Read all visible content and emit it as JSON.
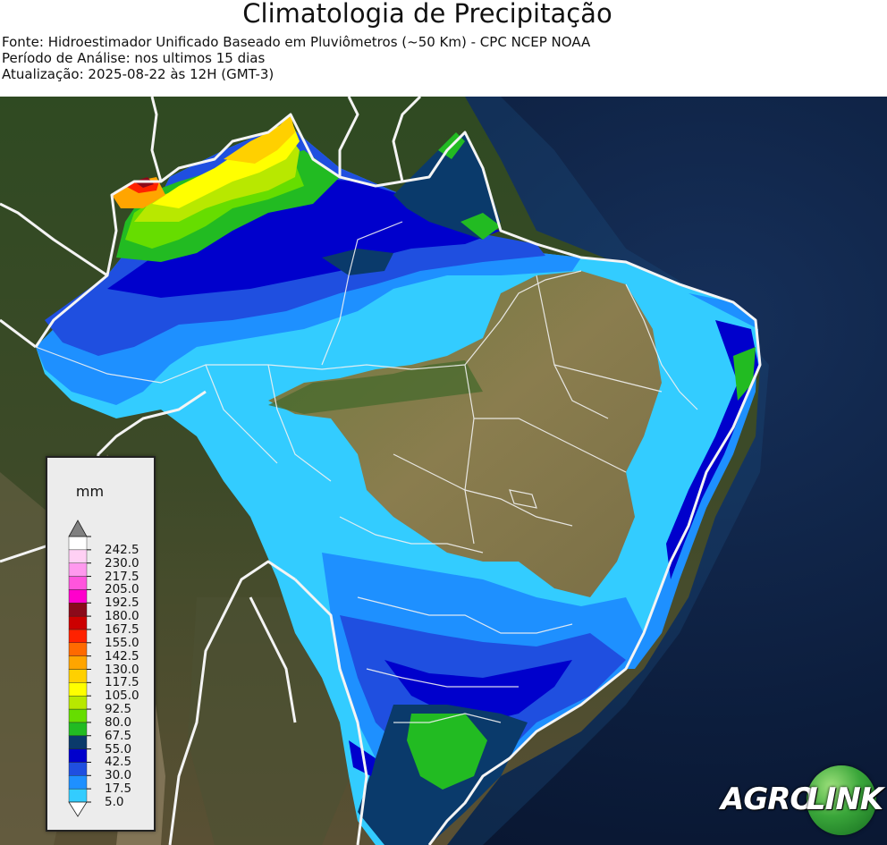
{
  "header": {
    "title": "Climatologia de Precipitação",
    "source": "Fonte: Hidroestimador Unificado Baseado em Pluviômetros (~50 Km) - CPC NCEP NOAA",
    "period": "Período de Análise: nos ultimos 15 dias",
    "updated": "Atualização: 2025-08-22 às 12H (GMT-3)"
  },
  "legend": {
    "unit": "mm",
    "bins": [
      {
        "label": "5.0",
        "color": "#33ccff"
      },
      {
        "label": "17.5",
        "color": "#1e90ff"
      },
      {
        "label": "30.0",
        "color": "#1f4fe0"
      },
      {
        "label": "42.5",
        "color": "#0000cc"
      },
      {
        "label": "55.0",
        "color": "#0a3a6b"
      },
      {
        "label": "67.5",
        "color": "#22bb22"
      },
      {
        "label": "80.0",
        "color": "#66dd00"
      },
      {
        "label": "92.5",
        "color": "#b8e800"
      },
      {
        "label": "105.0",
        "color": "#ffff00"
      },
      {
        "label": "117.5",
        "color": "#ffd000"
      },
      {
        "label": "130.0",
        "color": "#ffa500"
      },
      {
        "label": "142.5",
        "color": "#ff6a00"
      },
      {
        "label": "155.0",
        "color": "#ff2200"
      },
      {
        "label": "167.5",
        "color": "#cc0000"
      },
      {
        "label": "180.0",
        "color": "#8b0a1a"
      },
      {
        "label": "192.5",
        "color": "#ff00cc"
      },
      {
        "label": "205.0",
        "color": "#ff55dd"
      },
      {
        "label": "217.5",
        "color": "#ff99ee"
      },
      {
        "label": "230.0",
        "color": "#ffd0f4"
      },
      {
        "label": "242.5",
        "color": "#ffffff"
      }
    ],
    "over_color": "#808080"
  },
  "logo": {
    "text_left": "AGRO",
    "text_right": "LINK"
  }
}
